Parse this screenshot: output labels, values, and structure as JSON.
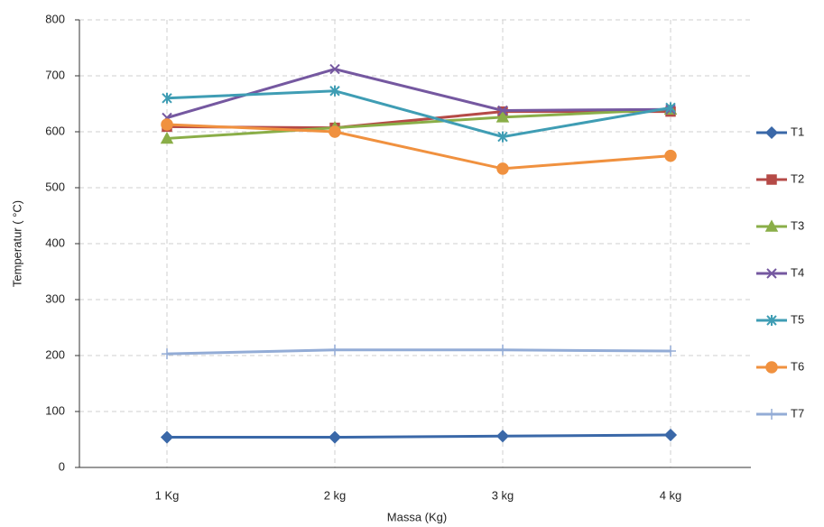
{
  "chart_data": {
    "type": "line",
    "x_label": "Massa (Kg)",
    "y_label": "Temperatur ( °C)",
    "categories": [
      "1 Kg",
      "2 kg",
      "3 kg",
      "4 kg"
    ],
    "ylim": [
      0,
      800
    ],
    "yticks": [
      0,
      100,
      200,
      300,
      400,
      500,
      600,
      700,
      800
    ],
    "grid": true,
    "legend": "right",
    "series": [
      {
        "name": "T1",
        "color": "#3a68a8",
        "marker": "diamond",
        "values": [
          54,
          54,
          56,
          58
        ]
      },
      {
        "name": "T2",
        "color": "#b54a47",
        "marker": "square",
        "values": [
          609,
          607,
          636,
          636
        ]
      },
      {
        "name": "T3",
        "color": "#8aae48",
        "marker": "triangle",
        "values": [
          588,
          607,
          626,
          640
        ]
      },
      {
        "name": "T4",
        "color": "#7558a0",
        "marker": "x",
        "values": [
          625,
          712,
          638,
          640
        ]
      },
      {
        "name": "T5",
        "color": "#3f9db4",
        "marker": "asterisk",
        "values": [
          660,
          673,
          591,
          643
        ]
      },
      {
        "name": "T6",
        "color": "#f0913f",
        "marker": "circle",
        "values": [
          613,
          600,
          534,
          557
        ]
      },
      {
        "name": "T7",
        "color": "#93acd6",
        "marker": "plus",
        "values": [
          203,
          210,
          210,
          208
        ]
      }
    ]
  }
}
